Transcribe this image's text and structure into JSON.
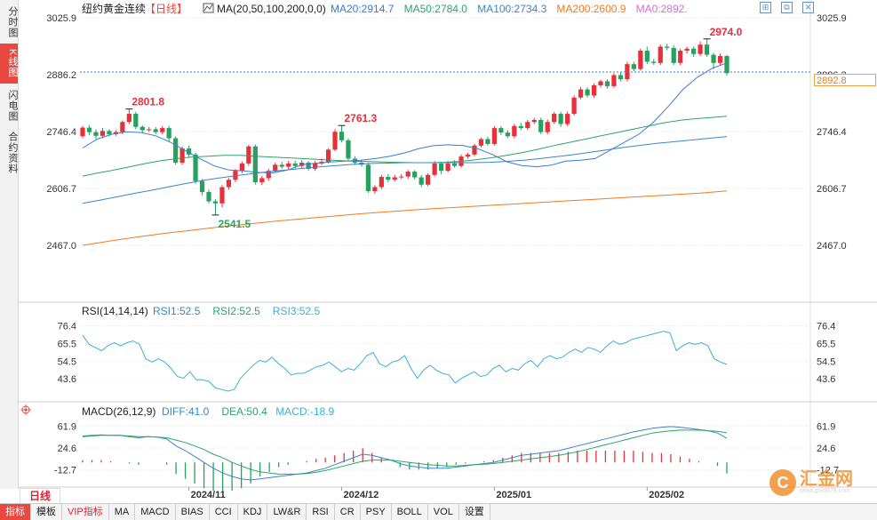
{
  "side_tabs": [
    {
      "label": "分时图",
      "active": false
    },
    {
      "label": "K线图",
      "active": true
    },
    {
      "label": "闪电图",
      "active": false
    },
    {
      "label": "合约资料",
      "active": false
    }
  ],
  "header": {
    "instrument": "纽约黄金连续",
    "period_tag": "【日线】",
    "ma_label": "MA(20,50,100,200,0,0)",
    "ma_values": [
      {
        "text": "MA20:2914.7",
        "color": "#3a7bd5"
      },
      {
        "text": "MA50:2784.0",
        "color": "#2aa56a"
      },
      {
        "text": "MA100:2734.3",
        "color": "#3a86c8"
      },
      {
        "text": "MA200:2600.9",
        "color": "#f07b1e"
      },
      {
        "text": "MA0:2892.",
        "color": "#d070d0"
      }
    ],
    "window_icons": [
      "expand-icon",
      "restore-icon",
      "close-icon"
    ]
  },
  "colors": {
    "up": "#e8303a",
    "down": "#27a060",
    "grid": "#e6e6e6"
  },
  "chart_data": [
    {
      "type": "candlestick",
      "title": "纽约黄金连续 日线",
      "y_axis_ticks": [
        3025.9,
        2886.2,
        2746.4,
        2606.7,
        2467.0
      ],
      "y_range": [
        2467.0,
        3025.9
      ],
      "x_axis_labels": [
        "2024/11",
        "2024/12",
        "2025/01",
        "2025/02"
      ],
      "last_price": 2892.8,
      "annotations": [
        {
          "text": "2974.0",
          "value": 2974.0,
          "kind": "high"
        },
        {
          "text": "2801.8",
          "value": 2801.8,
          "kind": "high"
        },
        {
          "text": "2761.3",
          "value": 2761.3,
          "kind": "high"
        },
        {
          "text": "2541.5",
          "value": 2541.5,
          "kind": "low"
        }
      ],
      "candles": [
        [
          2735,
          2756,
          2760,
          2730
        ],
        [
          2756,
          2745,
          2762,
          2738
        ],
        [
          2745,
          2736,
          2752,
          2728
        ],
        [
          2736,
          2748,
          2755,
          2730
        ],
        [
          2748,
          2740,
          2752,
          2735
        ],
        [
          2740,
          2745,
          2750,
          2736
        ],
        [
          2745,
          2770,
          2774,
          2740
        ],
        [
          2770,
          2790,
          2802,
          2765
        ],
        [
          2790,
          2758,
          2795,
          2752
        ],
        [
          2758,
          2750,
          2762,
          2744
        ],
        [
          2750,
          2752,
          2758,
          2745
        ],
        [
          2752,
          2745,
          2757,
          2740
        ],
        [
          2745,
          2755,
          2760,
          2740
        ],
        [
          2755,
          2730,
          2760,
          2722
        ],
        [
          2730,
          2670,
          2735,
          2665
        ],
        [
          2670,
          2705,
          2710,
          2665
        ],
        [
          2705,
          2690,
          2712,
          2684
        ],
        [
          2690,
          2625,
          2695,
          2618
        ],
        [
          2625,
          2598,
          2630,
          2590
        ],
        [
          2598,
          2575,
          2604,
          2570
        ],
        [
          2575,
          2570,
          2580,
          2541
        ],
        [
          2570,
          2610,
          2615,
          2560
        ],
        [
          2610,
          2628,
          2632,
          2604
        ],
        [
          2628,
          2650,
          2654,
          2622
        ],
        [
          2650,
          2668,
          2673,
          2644
        ],
        [
          2668,
          2710,
          2714,
          2662
        ],
        [
          2710,
          2622,
          2715,
          2616
        ],
        [
          2622,
          2632,
          2638,
          2615
        ],
        [
          2632,
          2650,
          2655,
          2626
        ],
        [
          2650,
          2665,
          2670,
          2645
        ],
        [
          2665,
          2660,
          2672,
          2655
        ],
        [
          2660,
          2668,
          2675,
          2654
        ],
        [
          2668,
          2662,
          2675,
          2656
        ],
        [
          2662,
          2670,
          2676,
          2656
        ],
        [
          2670,
          2655,
          2674,
          2650
        ],
        [
          2655,
          2668,
          2674,
          2650
        ],
        [
          2668,
          2672,
          2680,
          2664
        ],
        [
          2672,
          2702,
          2705,
          2668
        ],
        [
          2702,
          2746,
          2752,
          2698
        ],
        [
          2746,
          2725,
          2761,
          2720
        ],
        [
          2725,
          2680,
          2730,
          2674
        ],
        [
          2680,
          2670,
          2686,
          2664
        ],
        [
          2670,
          2665,
          2676,
          2660
        ],
        [
          2665,
          2600,
          2670,
          2596
        ],
        [
          2600,
          2610,
          2615,
          2594
        ],
        [
          2610,
          2635,
          2640,
          2605
        ],
        [
          2635,
          2628,
          2642,
          2622
        ],
        [
          2628,
          2634,
          2640,
          2624
        ],
        [
          2634,
          2636,
          2642,
          2630
        ],
        [
          2636,
          2648,
          2652,
          2630
        ],
        [
          2648,
          2634,
          2652,
          2628
        ],
        [
          2634,
          2616,
          2640,
          2610
        ],
        [
          2616,
          2640,
          2644,
          2612
        ],
        [
          2640,
          2668,
          2674,
          2636
        ],
        [
          2668,
          2650,
          2672,
          2642
        ],
        [
          2650,
          2668,
          2674,
          2646
        ],
        [
          2668,
          2662,
          2676,
          2658
        ],
        [
          2662,
          2685,
          2690,
          2658
        ],
        [
          2685,
          2690,
          2694,
          2680
        ],
        [
          2690,
          2712,
          2716,
          2686
        ],
        [
          2712,
          2728,
          2732,
          2707
        ],
        [
          2728,
          2716,
          2734,
          2712
        ],
        [
          2716,
          2755,
          2760,
          2712
        ],
        [
          2755,
          2744,
          2760,
          2738
        ],
        [
          2744,
          2735,
          2750,
          2730
        ],
        [
          2735,
          2760,
          2765,
          2730
        ],
        [
          2760,
          2755,
          2768,
          2750
        ],
        [
          2755,
          2770,
          2775,
          2750
        ],
        [
          2770,
          2775,
          2780,
          2765
        ],
        [
          2775,
          2745,
          2780,
          2740
        ],
        [
          2745,
          2770,
          2776,
          2740
        ],
        [
          2770,
          2790,
          2795,
          2765
        ],
        [
          2790,
          2765,
          2795,
          2758
        ],
        [
          2765,
          2790,
          2796,
          2760
        ],
        [
          2790,
          2830,
          2835,
          2786
        ],
        [
          2830,
          2850,
          2856,
          2826
        ],
        [
          2850,
          2835,
          2855,
          2830
        ],
        [
          2835,
          2860,
          2865,
          2830
        ],
        [
          2860,
          2870,
          2874,
          2854
        ],
        [
          2870,
          2858,
          2875,
          2852
        ],
        [
          2858,
          2885,
          2890,
          2854
        ],
        [
          2885,
          2875,
          2892,
          2870
        ],
        [
          2875,
          2912,
          2918,
          2870
        ],
        [
          2912,
          2900,
          2918,
          2895
        ],
        [
          2900,
          2945,
          2950,
          2896
        ],
        [
          2945,
          2918,
          2955,
          2912
        ],
        [
          2918,
          2915,
          2925,
          2910
        ],
        [
          2915,
          2955,
          2960,
          2910
        ],
        [
          2955,
          2952,
          2962,
          2946
        ],
        [
          2952,
          2915,
          2958,
          2910
        ],
        [
          2915,
          2945,
          2950,
          2910
        ],
        [
          2945,
          2950,
          2955,
          2938
        ],
        [
          2950,
          2937,
          2955,
          2930
        ],
        [
          2937,
          2960,
          2968,
          2932
        ],
        [
          2960,
          2935,
          2974,
          2930
        ],
        [
          2935,
          2915,
          2940,
          2900
        ],
        [
          2915,
          2932,
          2938,
          2910
        ],
        [
          2932,
          2890,
          2935,
          2884
        ]
      ],
      "ma_series": [
        {
          "name": "MA20",
          "color": "#3a7bd5",
          "values": [
            2706,
            2728,
            2740,
            2746,
            2744,
            2736,
            2720,
            2700,
            2680,
            2662,
            2652,
            2650,
            2646,
            2645,
            2652,
            2665,
            2669,
            2672,
            2674,
            2676,
            2680,
            2686,
            2694,
            2705,
            2712,
            2714,
            2712,
            2704,
            2690,
            2672,
            2663,
            2660,
            2664,
            2674,
            2676,
            2680,
            2700,
            2720,
            2740,
            2770,
            2808,
            2850,
            2880,
            2902,
            2914.7
          ]
        },
        {
          "name": "MA50",
          "color": "#2aa56a",
          "values": [
            2637,
            2645,
            2652,
            2660,
            2668,
            2675,
            2680,
            2684,
            2686,
            2688,
            2688,
            2686,
            2684,
            2682,
            2680,
            2678,
            2676,
            2674,
            2673,
            2672,
            2671,
            2670,
            2670,
            2671,
            2673,
            2677,
            2682,
            2688,
            2695,
            2703,
            2712,
            2720,
            2728,
            2736,
            2744,
            2752,
            2760,
            2768,
            2774,
            2778,
            2781,
            2784
          ]
        },
        {
          "name": "MA100",
          "color": "#3a86c8",
          "values": [
            2570,
            2578,
            2586,
            2594,
            2602,
            2610,
            2618,
            2626,
            2632,
            2638,
            2643,
            2648,
            2652,
            2656,
            2660,
            2663,
            2666,
            2668,
            2669,
            2670,
            2670,
            2670,
            2670,
            2670,
            2671,
            2673,
            2676,
            2680,
            2685,
            2690,
            2696,
            2702,
            2708,
            2713,
            2718,
            2722,
            2726,
            2730,
            2734.3
          ]
        },
        {
          "name": "MA200",
          "color": "#f07b1e",
          "values": [
            2467,
            2478,
            2488,
            2497,
            2505,
            2513,
            2520,
            2527,
            2533,
            2539,
            2545,
            2550,
            2555,
            2559,
            2563,
            2567,
            2571,
            2575,
            2579,
            2583,
            2587,
            2591,
            2595,
            2600.9
          ]
        }
      ]
    },
    {
      "type": "line",
      "title": "RSI(14,14,14)",
      "legend": [
        {
          "text": "RSI1:52.5",
          "color": "#3a86c8"
        },
        {
          "text": "RSI2:52.5",
          "color": "#2aa56a"
        },
        {
          "text": "RSI3:52.5",
          "color": "#3ab0d8"
        }
      ],
      "y_axis_ticks": [
        76.4,
        65.5,
        54.5,
        43.6
      ],
      "y_range": [
        36,
        80
      ],
      "values": [
        70.5,
        65,
        63,
        61,
        64,
        66,
        64,
        66,
        67,
        65,
        56,
        54,
        56,
        54,
        50,
        45,
        44,
        48,
        43,
        43,
        42,
        38,
        37,
        36,
        37,
        44,
        48,
        52,
        55,
        54,
        57,
        53,
        50,
        46,
        47,
        47,
        49,
        51,
        52,
        54,
        51,
        48,
        50,
        49,
        53,
        58,
        60,
        53,
        51,
        54,
        55,
        58,
        50,
        44,
        49,
        52,
        49,
        47,
        46,
        41,
        44,
        46,
        48,
        45,
        46,
        50,
        52,
        48,
        50,
        49,
        53,
        55,
        51,
        56,
        58,
        56,
        57,
        60,
        62,
        60,
        63,
        62,
        60,
        64,
        67,
        65,
        66,
        68,
        69,
        70,
        71,
        72,
        73,
        72,
        61,
        64,
        66,
        65,
        66,
        64,
        56,
        54,
        52.5
      ]
    },
    {
      "type": "bar",
      "title": "MACD(26,12,9)",
      "legend": [
        {
          "text": "DIFF:41.0",
          "color": "#3a86c8"
        },
        {
          "text": "DEA:50.4",
          "color": "#2aa56a"
        },
        {
          "text": "MACD:-18.9",
          "color": "#3ab0d8"
        }
      ],
      "y_axis_ticks": [
        61.9,
        24.6,
        -12.7
      ],
      "y_range": [
        -30,
        70
      ],
      "diff": [
        45,
        46,
        47,
        46,
        46,
        44,
        42,
        44,
        43,
        40,
        28,
        20,
        10,
        0,
        -10,
        -18,
        -24,
        -28,
        -30,
        -28,
        -26,
        -24,
        -22,
        -20,
        -18,
        -14,
        -10,
        -4,
        2,
        8,
        14,
        12,
        8,
        4,
        -2,
        -6,
        -8,
        -10,
        -10,
        -10,
        -8,
        -6,
        -4,
        -2,
        0,
        4,
        8,
        12,
        14,
        16,
        18,
        20,
        24,
        28,
        32,
        36,
        40,
        44,
        48,
        52,
        55,
        58,
        60,
        61,
        60,
        58,
        56,
        54,
        50,
        41
      ],
      "dea": [
        44,
        45,
        46,
        46,
        46,
        45,
        44,
        44,
        43,
        42,
        38,
        34,
        28,
        22,
        14,
        8,
        0,
        -6,
        -12,
        -16,
        -18,
        -20,
        -20,
        -20,
        -19,
        -17,
        -14,
        -10,
        -6,
        -2,
        2,
        4,
        4,
        4,
        2,
        0,
        -2,
        -4,
        -5,
        -6,
        -6,
        -5,
        -4,
        -3,
        -2,
        0,
        2,
        4,
        6,
        8,
        10,
        12,
        15,
        18,
        22,
        26,
        30,
        34,
        38,
        42,
        46,
        50,
        52,
        54,
        55,
        55,
        55,
        54,
        53,
        50.4
      ],
      "macd": [
        4,
        4,
        4,
        2,
        0,
        -2,
        -4,
        0,
        0,
        -4,
        -20,
        -28,
        -36,
        -44,
        -48,
        -52,
        -48,
        -44,
        -36,
        -24,
        -16,
        -8,
        -4,
        0,
        2,
        6,
        8,
        12,
        16,
        20,
        24,
        16,
        8,
        0,
        -8,
        -12,
        -12,
        -12,
        -10,
        -8,
        -4,
        -2,
        0,
        2,
        4,
        8,
        12,
        16,
        16,
        16,
        16,
        16,
        18,
        20,
        20,
        20,
        20,
        20,
        20,
        20,
        18,
        16,
        16,
        14,
        10,
        6,
        2,
        0,
        -6,
        -18.9
      ]
    }
  ],
  "period_button": "日线",
  "toolbar_items": [
    {
      "label": "指标",
      "active": true
    },
    {
      "label": "模板",
      "active": false
    },
    {
      "label": "VIP指标",
      "active": false,
      "vip": true
    },
    {
      "label": "MA",
      "active": false
    },
    {
      "label": "MACD",
      "active": false
    },
    {
      "label": "BIAS",
      "active": false
    },
    {
      "label": "CCI",
      "active": false
    },
    {
      "label": "KDJ",
      "active": false
    },
    {
      "label": "LW&R",
      "active": false
    },
    {
      "label": "RSI",
      "active": false
    },
    {
      "label": "CR",
      "active": false
    },
    {
      "label": "PSY",
      "active": false
    },
    {
      "label": "BOLL",
      "active": false
    },
    {
      "label": "VOL",
      "active": false
    },
    {
      "label": "设置",
      "active": false
    }
  ],
  "last_price_label": "2892.8",
  "watermark": {
    "name": "汇金网",
    "url": "www.gold678.com"
  }
}
